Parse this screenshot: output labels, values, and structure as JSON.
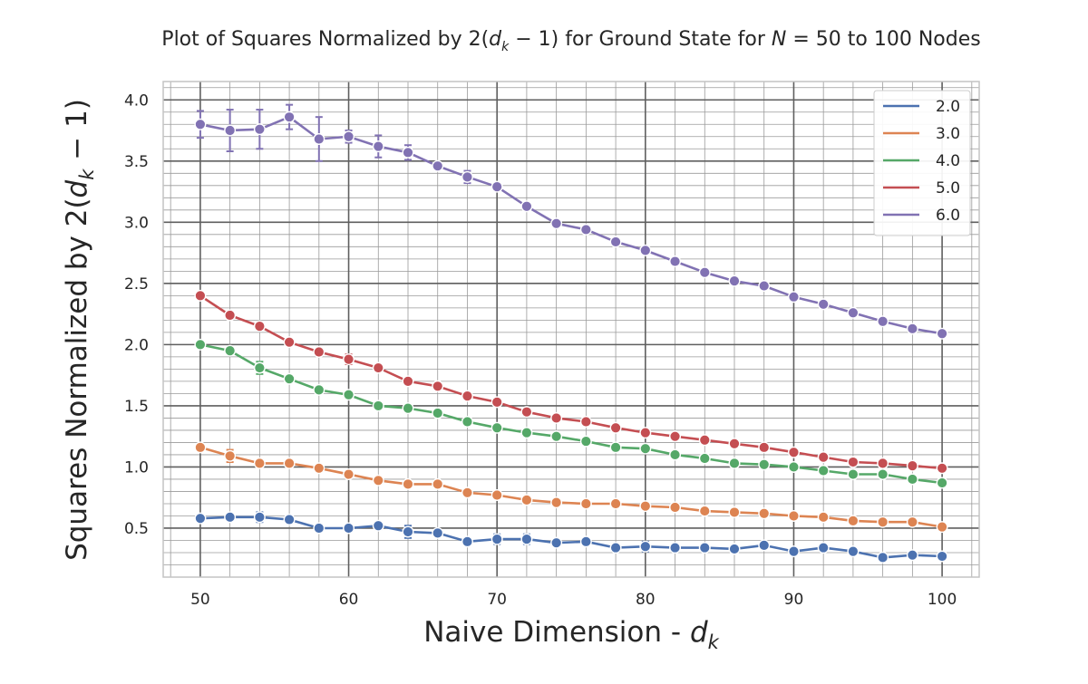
{
  "chart_data": {
    "type": "line",
    "title_parts": {
      "pre": "Plot of Squares Normalized by 2(",
      "dvar": "d",
      "dsub": "k",
      "mid": " − 1) for Ground State for ",
      "nvar": "N",
      "post": " = 50 to 100 Nodes"
    },
    "title": "Plot of Squares Normalized by 2(d_k − 1) for Ground State for N = 50 to 100 Nodes",
    "xlabel_parts": {
      "pre": "Naive Dimension - ",
      "var": "d",
      "sub": "k"
    },
    "xlabel": "Naive Dimension - d_k",
    "ylabel_parts": {
      "pre": "Squares Normalized by 2(",
      "var": "d",
      "sub": "k",
      "post": " − 1)"
    },
    "ylabel": "Squares Normalized by 2(d_k − 1)",
    "xlim": [
      47.5,
      102.5
    ],
    "ylim": [
      0.1,
      4.15
    ],
    "major_xticks": [
      50,
      60,
      70,
      80,
      90,
      100
    ],
    "major_xtick_labels": [
      "50",
      "60",
      "70",
      "80",
      "90",
      "100"
    ],
    "major_yticks": [
      0.5,
      1.0,
      1.5,
      2.0,
      2.5,
      3.0,
      3.5,
      4.0
    ],
    "major_ytick_labels": [
      "0.5",
      "1.0",
      "1.5",
      "2.0",
      "2.5",
      "3.0",
      "3.5",
      "4.0"
    ],
    "minor_xstep": 2,
    "minor_ystep": 0.1,
    "grid": true,
    "legend_position": "top-right",
    "x": [
      50,
      52,
      54,
      56,
      58,
      60,
      62,
      64,
      66,
      68,
      70,
      72,
      74,
      76,
      78,
      80,
      82,
      84,
      86,
      88,
      90,
      92,
      94,
      96,
      98,
      100
    ],
    "series": [
      {
        "name": "2.0",
        "color": "#4c72b0",
        "values": [
          0.58,
          0.59,
          0.59,
          0.57,
          0.5,
          0.5,
          0.52,
          0.47,
          0.46,
          0.39,
          0.41,
          0.41,
          0.38,
          0.39,
          0.34,
          0.35,
          0.34,
          0.34,
          0.33,
          0.36,
          0.31,
          0.34,
          0.31,
          0.26,
          0.28,
          0.27
        ],
        "errors": [
          0.02,
          0.02,
          0.04,
          0.02,
          0.02,
          0.02,
          0.03,
          0.05,
          0.02,
          0.02,
          0.04,
          0.04,
          0.02,
          0.02,
          0.02,
          0.04,
          0.02,
          0.02,
          0.02,
          0.02,
          0.02,
          0.02,
          0.02,
          0.02,
          0.02,
          0.02
        ]
      },
      {
        "name": "3.0",
        "color": "#dd8452",
        "values": [
          1.16,
          1.09,
          1.03,
          1.03,
          0.99,
          0.94,
          0.89,
          0.86,
          0.86,
          0.79,
          0.77,
          0.73,
          0.71,
          0.7,
          0.7,
          0.68,
          0.67,
          0.64,
          0.63,
          0.62,
          0.6,
          0.59,
          0.56,
          0.55,
          0.55,
          0.51
        ],
        "errors": [
          0.02,
          0.05,
          0.03,
          0.02,
          0.02,
          0.02,
          0.02,
          0.02,
          0.02,
          0.02,
          0.02,
          0.02,
          0.02,
          0.02,
          0.02,
          0.02,
          0.02,
          0.02,
          0.02,
          0.02,
          0.02,
          0.02,
          0.02,
          0.02,
          0.02,
          0.02
        ]
      },
      {
        "name": "4.0",
        "color": "#55a868",
        "values": [
          2.0,
          1.95,
          1.81,
          1.72,
          1.63,
          1.59,
          1.5,
          1.48,
          1.44,
          1.37,
          1.32,
          1.28,
          1.25,
          1.21,
          1.16,
          1.15,
          1.1,
          1.07,
          1.03,
          1.02,
          1.0,
          0.97,
          0.94,
          0.94,
          0.9,
          0.87
        ],
        "errors": [
          0.02,
          0.02,
          0.05,
          0.02,
          0.02,
          0.02,
          0.02,
          0.02,
          0.02,
          0.02,
          0.02,
          0.02,
          0.02,
          0.02,
          0.02,
          0.02,
          0.02,
          0.02,
          0.02,
          0.02,
          0.02,
          0.02,
          0.02,
          0.02,
          0.02,
          0.02
        ]
      },
      {
        "name": "5.0",
        "color": "#c44e52",
        "values": [
          2.4,
          2.24,
          2.15,
          2.02,
          1.94,
          1.88,
          1.81,
          1.7,
          1.66,
          1.58,
          1.53,
          1.45,
          1.4,
          1.37,
          1.32,
          1.28,
          1.25,
          1.22,
          1.19,
          1.16,
          1.12,
          1.08,
          1.04,
          1.03,
          1.01,
          0.99
        ],
        "errors": [
          0.02,
          0.03,
          0.02,
          0.02,
          0.02,
          0.04,
          0.02,
          0.03,
          0.02,
          0.02,
          0.02,
          0.02,
          0.02,
          0.02,
          0.02,
          0.02,
          0.02,
          0.02,
          0.02,
          0.02,
          0.02,
          0.02,
          0.02,
          0.02,
          0.02,
          0.02
        ]
      },
      {
        "name": "6.0",
        "color": "#8172b3",
        "values": [
          3.8,
          3.75,
          3.76,
          3.86,
          3.68,
          3.7,
          3.62,
          3.57,
          3.46,
          3.37,
          3.29,
          3.13,
          2.99,
          2.94,
          2.84,
          2.77,
          2.68,
          2.59,
          2.52,
          2.48,
          2.39,
          2.33,
          2.26,
          2.19,
          2.13,
          2.09
        ],
        "errors": [
          0.11,
          0.17,
          0.16,
          0.1,
          0.18,
          0.05,
          0.09,
          0.06,
          0.03,
          0.05,
          0.02,
          0.02,
          0.02,
          0.02,
          0.02,
          0.02,
          0.02,
          0.02,
          0.02,
          0.02,
          0.02,
          0.02,
          0.02,
          0.02,
          0.02,
          0.02
        ]
      }
    ]
  }
}
